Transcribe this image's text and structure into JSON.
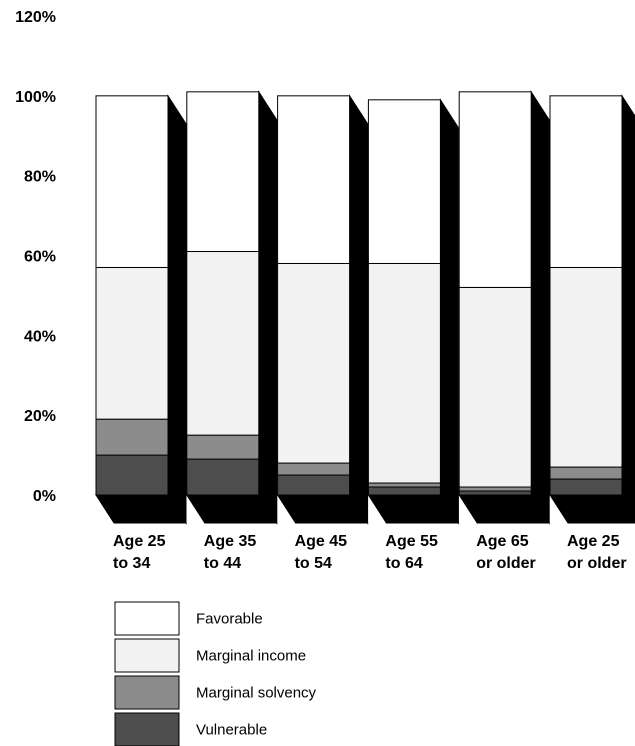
{
  "chart_data": {
    "type": "bar",
    "stacked": true,
    "three_d": true,
    "categories": [
      [
        "Age 25",
        "to 34"
      ],
      [
        "Age 35",
        "to 44"
      ],
      [
        "Age 45",
        "to 54"
      ],
      [
        "Age 55",
        "to 64"
      ],
      [
        "Age 65",
        "or older"
      ],
      [
        "Age 25",
        "or older"
      ]
    ],
    "series": [
      {
        "name": "Vulnerable",
        "color": "#4d4d4d",
        "values": [
          10,
          9,
          5,
          2,
          1,
          4
        ]
      },
      {
        "name": "Marginal solvency",
        "color": "#8c8c8c",
        "values": [
          9,
          6,
          3,
          1,
          1,
          3
        ]
      },
      {
        "name": "Marginal income",
        "color": "#f2f2f2",
        "values": [
          38,
          46,
          50,
          55,
          50,
          50
        ]
      },
      {
        "name": "Favorable",
        "color": "#ffffff",
        "values": [
          43,
          40,
          42,
          41,
          49,
          43
        ]
      }
    ],
    "legend_order": [
      "Favorable",
      "Marginal income",
      "Marginal solvency",
      "Vulnerable"
    ],
    "y_ticks": [
      "0%",
      "20%",
      "40%",
      "60%",
      "80%",
      "100%",
      "120%"
    ],
    "ylim": [
      0,
      120
    ],
    "legend_position": "bottom-left",
    "grid": false
  }
}
